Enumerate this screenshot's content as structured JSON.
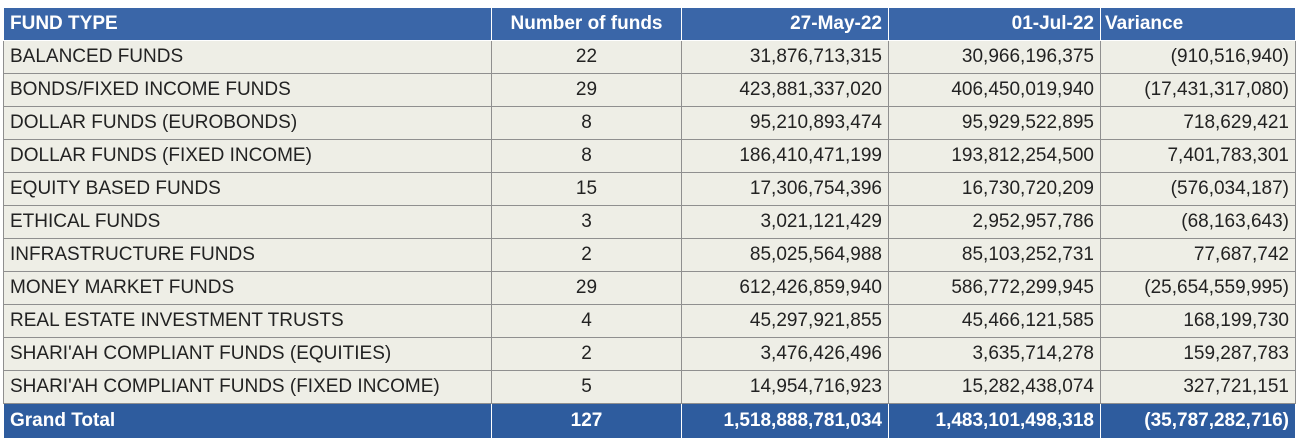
{
  "table": {
    "headers": {
      "fund_type": "FUND TYPE",
      "number_of_funds": "Number of funds",
      "date1": "27-May-22",
      "date2": "01-Jul-22",
      "variance": "Variance"
    },
    "rows": [
      {
        "fund_type": "BALANCED FUNDS",
        "number_of_funds": "22",
        "date1": "31,876,713,315",
        "date2": "30,966,196,375",
        "variance": "(910,516,940)"
      },
      {
        "fund_type": "BONDS/FIXED INCOME FUNDS",
        "number_of_funds": "29",
        "date1": "423,881,337,020",
        "date2": "406,450,019,940",
        "variance": "(17,431,317,080)"
      },
      {
        "fund_type": "DOLLAR FUNDS (EUROBONDS)",
        "number_of_funds": "8",
        "date1": "95,210,893,474",
        "date2": "95,929,522,895",
        "variance": "718,629,421"
      },
      {
        "fund_type": "DOLLAR FUNDS (FIXED INCOME)",
        "number_of_funds": "8",
        "date1": "186,410,471,199",
        "date2": "193,812,254,500",
        "variance": "7,401,783,301"
      },
      {
        "fund_type": "EQUITY BASED FUNDS",
        "number_of_funds": "15",
        "date1": "17,306,754,396",
        "date2": "16,730,720,209",
        "variance": "(576,034,187)"
      },
      {
        "fund_type": "ETHICAL FUNDS",
        "number_of_funds": "3",
        "date1": "3,021,121,429",
        "date2": "2,952,957,786",
        "variance": "(68,163,643)"
      },
      {
        "fund_type": "INFRASTRUCTURE FUNDS",
        "number_of_funds": "2",
        "date1": "85,025,564,988",
        "date2": "85,103,252,731",
        "variance": "77,687,742"
      },
      {
        "fund_type": "MONEY MARKET FUNDS",
        "number_of_funds": "29",
        "date1": "612,426,859,940",
        "date2": "586,772,299,945",
        "variance": "(25,654,559,995)"
      },
      {
        "fund_type": "REAL ESTATE INVESTMENT TRUSTS",
        "number_of_funds": "4",
        "date1": "45,297,921,855",
        "date2": "45,466,121,585",
        "variance": "168,199,730"
      },
      {
        "fund_type": "SHARI'AH COMPLIANT FUNDS (EQUITIES)",
        "number_of_funds": "2",
        "date1": "3,476,426,496",
        "date2": "3,635,714,278",
        "variance": "159,287,783"
      },
      {
        "fund_type": "SHARI'AH COMPLIANT FUNDS (FIXED INCOME)",
        "number_of_funds": "5",
        "date1": "14,954,716,923",
        "date2": "15,282,438,074",
        "variance": "327,721,151"
      }
    ],
    "total": {
      "fund_type": "Grand Total",
      "number_of_funds": "127",
      "date1": "1,518,888,781,034",
      "date2": "1,483,101,498,318",
      "variance": "(35,787,282,716)"
    }
  }
}
